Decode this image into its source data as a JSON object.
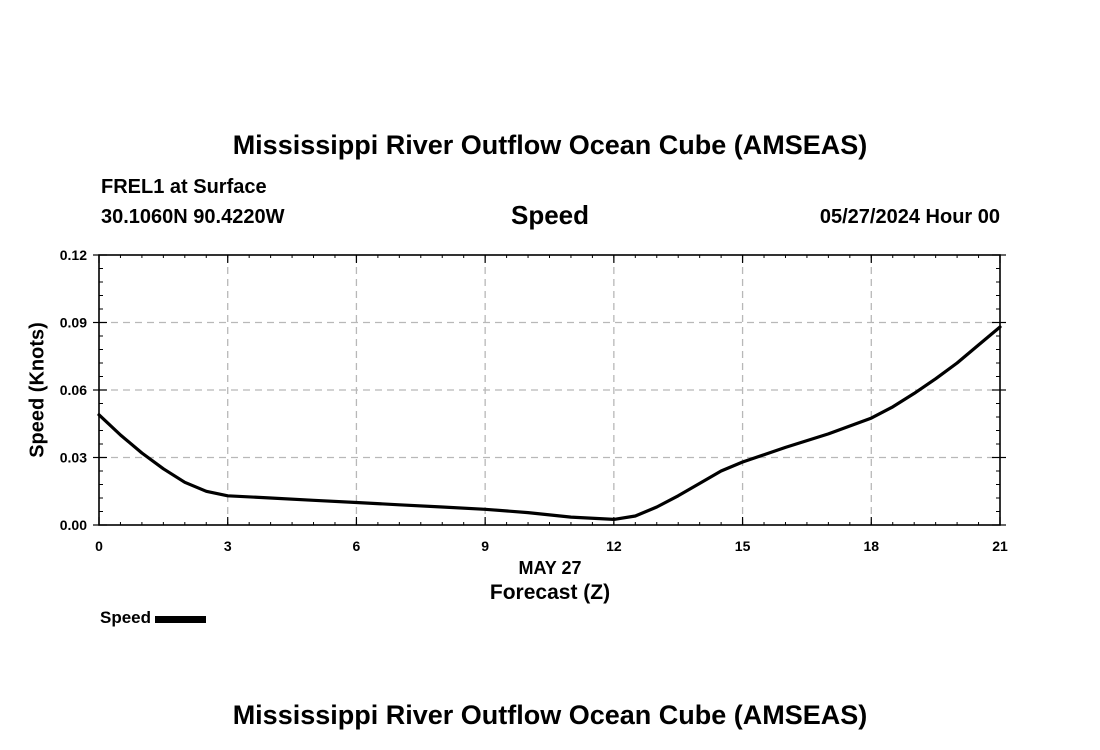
{
  "header": {
    "title": "Mississippi River Outflow Ocean Cube (AMSEAS)",
    "station": "FREL1 at Surface",
    "coordinates": "30.1060N  90.4220W",
    "datetime": "05/27/2024 Hour 00",
    "footer_title": "Mississippi River Outflow Ocean Cube (AMSEAS)"
  },
  "chart_data": {
    "type": "line",
    "title": "Speed",
    "xlabel": "Forecast (Z)",
    "xlabel_date": "MAY 27",
    "ylabel": "Speed (Knots)",
    "xlim": [
      0,
      21
    ],
    "ylim": [
      0,
      0.12
    ],
    "xticks": [
      "0",
      "3",
      "6",
      "9",
      "12",
      "15",
      "18",
      "21"
    ],
    "yticks": [
      "0.00",
      "0.03",
      "0.06",
      "0.09",
      "0.12"
    ],
    "grid": true,
    "legend_position": "bottom-left",
    "series": [
      {
        "name": "Speed",
        "color": "#000000",
        "x": [
          0,
          0.5,
          1,
          1.5,
          2,
          2.5,
          3,
          4,
          5,
          6,
          7,
          8,
          9,
          10,
          11,
          12,
          12.5,
          13,
          13.5,
          14,
          14.5,
          15,
          16,
          17,
          18,
          18.5,
          19,
          19.5,
          20,
          20.5,
          21
        ],
        "y": [
          0.049,
          0.04,
          0.032,
          0.025,
          0.019,
          0.015,
          0.013,
          0.012,
          0.011,
          0.01,
          0.009,
          0.008,
          0.007,
          0.0055,
          0.0035,
          0.0025,
          0.004,
          0.008,
          0.013,
          0.0185,
          0.024,
          0.028,
          0.0345,
          0.0405,
          0.0475,
          0.0525,
          0.0585,
          0.065,
          0.072,
          0.08,
          0.088
        ]
      }
    ]
  }
}
